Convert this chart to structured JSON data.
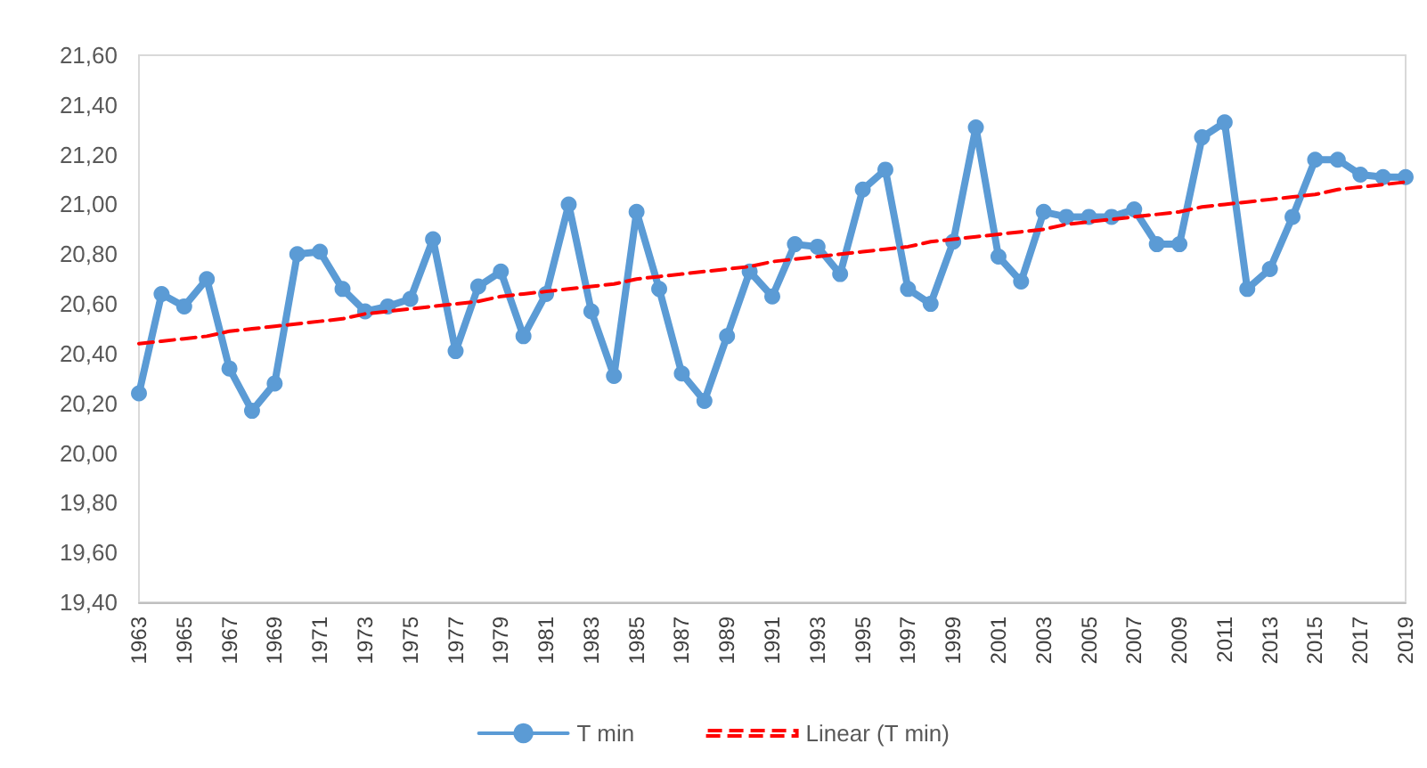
{
  "chart_data": {
    "type": "line",
    "categories": [
      "1963",
      null,
      "1965",
      null,
      "1967",
      null,
      "1969",
      null,
      "1971",
      null,
      "1973",
      null,
      "1975",
      null,
      "1977",
      null,
      "1979",
      null,
      "1981",
      null,
      "1983",
      null,
      "1985",
      null,
      "1987",
      null,
      "1989",
      null,
      "1991",
      null,
      "1993",
      null,
      "1995",
      null,
      "1997",
      null,
      "1999",
      null,
      "2001",
      null,
      "2003",
      null,
      "2005",
      null,
      "2007",
      null,
      "2009",
      null,
      "2011",
      null,
      "2013",
      null,
      "2015",
      null,
      "2017",
      null,
      "2019"
    ],
    "series": [
      {
        "name": "T min",
        "color": "#5b9bd5",
        "marker": "circle",
        "line_style": "solid",
        "values": [
          20.24,
          20.64,
          20.59,
          20.7,
          20.34,
          20.17,
          20.28,
          20.8,
          20.81,
          20.66,
          20.57,
          20.59,
          20.62,
          20.86,
          20.41,
          20.67,
          20.73,
          20.47,
          20.64,
          21.0,
          20.57,
          20.31,
          20.97,
          20.66,
          20.32,
          20.21,
          20.47,
          20.73,
          20.63,
          20.84,
          20.83,
          20.72,
          21.06,
          21.14,
          20.66,
          20.6,
          20.85,
          21.31,
          20.79,
          20.69,
          20.97,
          20.95,
          20.95,
          20.95,
          20.98,
          20.84,
          20.84,
          21.27,
          21.33,
          20.66,
          20.74,
          20.95,
          21.18,
          21.18,
          21.12,
          21.11,
          21.11
        ]
      },
      {
        "name": "Linear (T min)",
        "color": "#ff0000",
        "marker": "none",
        "line_style": "dashed",
        "values": [
          20.44,
          20.45,
          20.46,
          20.47,
          20.49,
          20.5,
          20.51,
          20.52,
          20.53,
          20.54,
          20.56,
          20.57,
          20.58,
          20.59,
          20.6,
          20.61,
          20.63,
          20.64,
          20.65,
          20.66,
          20.67,
          20.68,
          20.7,
          20.71,
          20.72,
          20.73,
          20.74,
          20.75,
          20.77,
          20.78,
          20.79,
          20.8,
          20.81,
          20.82,
          20.83,
          20.85,
          20.86,
          20.87,
          20.88,
          20.89,
          20.9,
          20.92,
          20.93,
          20.94,
          20.95,
          20.96,
          20.97,
          20.99,
          21.0,
          21.01,
          21.02,
          21.03,
          21.04,
          21.06,
          21.07,
          21.08,
          21.09
        ]
      }
    ],
    "ylim": [
      19.4,
      21.6
    ],
    "yticks": [
      {
        "value": 19.4,
        "label": "19,40"
      },
      {
        "value": 19.6,
        "label": "19,60"
      },
      {
        "value": 19.8,
        "label": "19,80"
      },
      {
        "value": 20.0,
        "label": "20,00"
      },
      {
        "value": 20.2,
        "label": "20,20"
      },
      {
        "value": 20.4,
        "label": "20,40"
      },
      {
        "value": 20.6,
        "label": "20,60"
      },
      {
        "value": 20.8,
        "label": "20,80"
      },
      {
        "value": 21.0,
        "label": "21,00"
      },
      {
        "value": 21.2,
        "label": "21,20"
      },
      {
        "value": 21.4,
        "label": "21,40"
      },
      {
        "value": 21.6,
        "label": "21,60"
      }
    ],
    "grid": false,
    "legend": "bottom"
  }
}
